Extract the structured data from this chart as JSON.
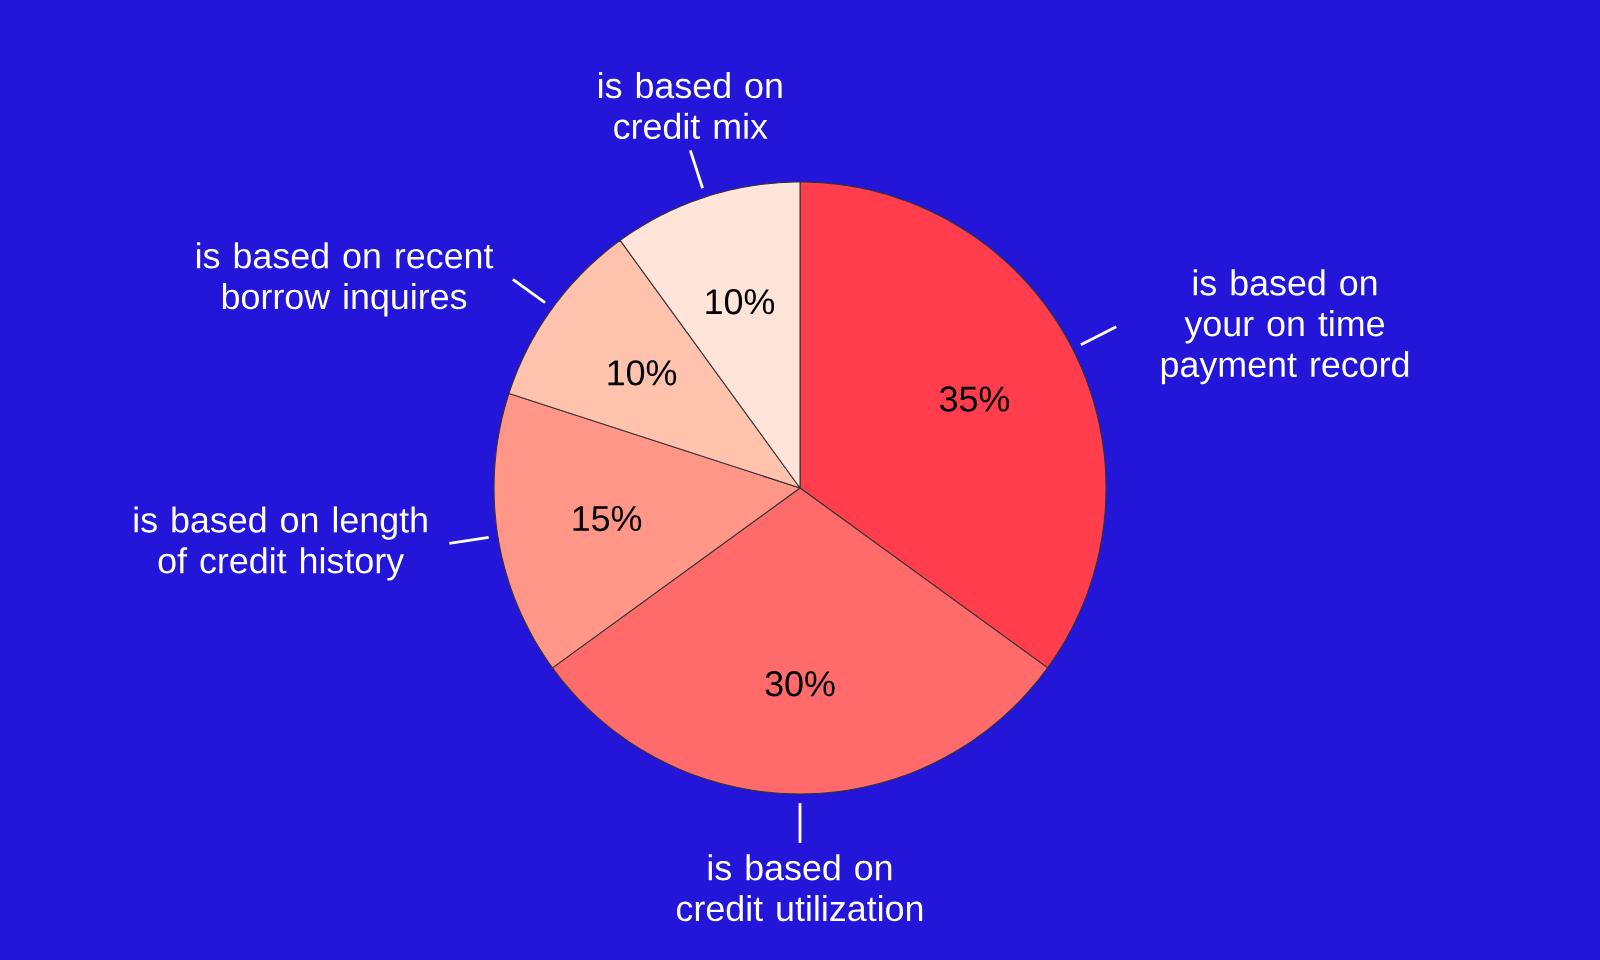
{
  "chart_data": {
    "type": "pie",
    "categories": [
      "is based on your on time payment record",
      "is based on credit utilization",
      "is based on length of credit history",
      "is based on recent borrow inquires",
      "is based on credit mix"
    ],
    "values": [
      35,
      30,
      15,
      10,
      10
    ],
    "colors": [
      "#ff3d4d",
      "#ff6b6b",
      "#ff9688",
      "#ffc2ad",
      "#ffe4d9"
    ],
    "value_labels": [
      "35%",
      "30%",
      "15%",
      "10%",
      "10%"
    ]
  }
}
